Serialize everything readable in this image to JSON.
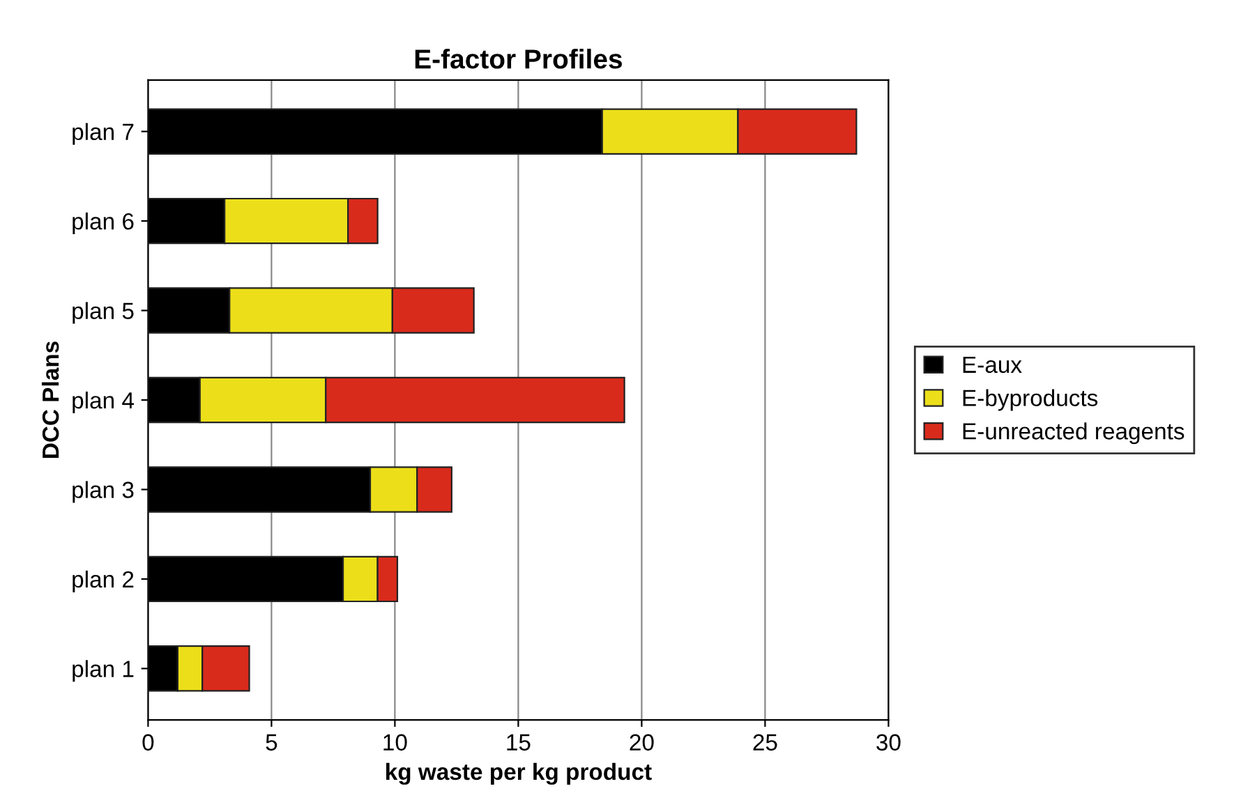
{
  "chart_data": {
    "type": "bar",
    "orientation": "horizontal",
    "stacked": true,
    "title": "E-factor Profiles",
    "xlabel": "kg waste per kg product",
    "ylabel": "DCC Plans",
    "categories": [
      "plan 7",
      "plan 6",
      "plan 5",
      "plan 4",
      "plan 3",
      "plan 2",
      "plan 1"
    ],
    "series": [
      {
        "name": "E-aux",
        "color": "#000000",
        "values": [
          18.4,
          3.1,
          3.3,
          2.1,
          9.0,
          7.9,
          1.2
        ]
      },
      {
        "name": "E-byproducts",
        "color": "#ecdf1a",
        "values": [
          5.5,
          5.0,
          6.6,
          5.1,
          1.9,
          1.4,
          1.0
        ]
      },
      {
        "name": "E-unreacted reagents",
        "color": "#d92b1c",
        "values": [
          4.8,
          1.2,
          3.3,
          12.1,
          1.4,
          0.8,
          1.9
        ]
      }
    ],
    "xlim": [
      0,
      30
    ],
    "xticks": [
      0,
      5,
      10,
      15,
      20,
      25,
      30
    ],
    "grid": "x",
    "legend": "right"
  }
}
